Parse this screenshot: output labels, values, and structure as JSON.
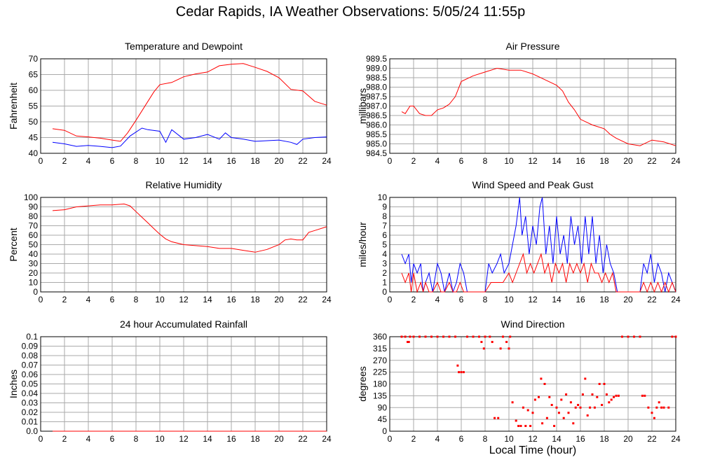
{
  "page": {
    "title": "Cedar Rapids, IA Weather Observations: 5/05/24 11:55p",
    "xlabel": "Local Time (hour)"
  },
  "colors": {
    "red": "#ff0000",
    "blue": "#0000ff",
    "grid": "#aaaaaa"
  },
  "chart_data": [
    {
      "id": "temp",
      "type": "line",
      "title": "Temperature and Dewpoint",
      "ylabel": "Fahrenheit",
      "xlim": [
        0,
        24
      ],
      "ylim": [
        40,
        70
      ],
      "xticks": [
        0,
        2,
        4,
        6,
        8,
        10,
        12,
        14,
        16,
        18,
        20,
        22,
        24
      ],
      "yticks": [
        40,
        45,
        50,
        55,
        60,
        65,
        70
      ],
      "grid": true,
      "series": [
        {
          "color": "#ff0000",
          "x": [
            1,
            2,
            3,
            4,
            5,
            6,
            6.7,
            7.3,
            8,
            8.5,
            9,
            9.5,
            10,
            11,
            12,
            13,
            14,
            15,
            16,
            17,
            18,
            19,
            20,
            21,
            22,
            23,
            24
          ],
          "y": [
            47.8,
            47.3,
            45.5,
            45.2,
            44.8,
            44.2,
            43.8,
            46.5,
            50.5,
            53.5,
            56.5,
            59.5,
            61.8,
            62.5,
            64.3,
            65.2,
            65.8,
            67.8,
            68.3,
            68.5,
            67.3,
            66.0,
            64.0,
            60.3,
            59.8,
            56.5,
            55.3
          ]
        },
        {
          "color": "#0000ff",
          "x": [
            1,
            2,
            3,
            4,
            5,
            6,
            6.7,
            7.5,
            8.5,
            9,
            10,
            10.5,
            11,
            12,
            13,
            14,
            15,
            15.5,
            16,
            17,
            18,
            19,
            20,
            21,
            21.5,
            22,
            23,
            24
          ],
          "y": [
            43.5,
            43.0,
            42.2,
            42.5,
            42.2,
            41.8,
            42.3,
            45.5,
            48.0,
            47.5,
            47.0,
            43.5,
            47.5,
            44.5,
            45.0,
            46.0,
            44.5,
            46.5,
            45.0,
            44.5,
            43.8,
            44.0,
            44.2,
            43.5,
            42.8,
            44.5,
            45.0,
            45.2
          ]
        }
      ]
    },
    {
      "id": "pressure",
      "type": "line",
      "title": "Air Pressure",
      "ylabel": "millibars",
      "xlim": [
        0,
        24
      ],
      "ylim": [
        984.5,
        989.5
      ],
      "xticks": [
        0,
        2,
        4,
        6,
        8,
        10,
        12,
        14,
        16,
        18,
        20,
        22,
        24
      ],
      "yticks": [
        984.5,
        985.0,
        985.5,
        986.0,
        986.5,
        987.0,
        987.5,
        988.0,
        988.5,
        989.0,
        989.5
      ],
      "ytick_labels": [
        "984.5",
        "985.0",
        "985.5",
        "986.0",
        "986.5",
        "987.0",
        "987.5",
        "988.0",
        "988.5",
        "989.0",
        "989.5"
      ],
      "grid": true,
      "series": [
        {
          "color": "#ff0000",
          "x": [
            1,
            1.3,
            1.7,
            2,
            2.5,
            3,
            3.5,
            4,
            4.5,
            5,
            5.5,
            6,
            7,
            8,
            9,
            10,
            11,
            12,
            13,
            14,
            14.5,
            15,
            15.5,
            16,
            17,
            18,
            18.5,
            19,
            20,
            21,
            22,
            23,
            24
          ],
          "y": [
            986.7,
            986.6,
            987.0,
            987.0,
            986.6,
            986.5,
            986.5,
            986.8,
            986.9,
            987.1,
            987.5,
            988.3,
            988.6,
            988.8,
            989.0,
            988.9,
            988.9,
            988.7,
            988.4,
            988.1,
            987.8,
            987.2,
            986.8,
            986.3,
            986.0,
            985.8,
            985.5,
            985.3,
            985.0,
            984.9,
            985.2,
            985.1,
            984.9
          ]
        }
      ]
    },
    {
      "id": "humidity",
      "type": "line",
      "title": "Relative Humidity",
      "ylabel": "Percent",
      "xlim": [
        0,
        24
      ],
      "ylim": [
        0,
        100
      ],
      "xticks": [
        0,
        2,
        4,
        6,
        8,
        10,
        12,
        14,
        16,
        18,
        20,
        22,
        24
      ],
      "yticks": [
        0,
        10,
        20,
        30,
        40,
        50,
        60,
        70,
        80,
        90,
        100
      ],
      "grid": true,
      "series": [
        {
          "color": "#ff0000",
          "x": [
            1,
            2,
            3,
            4,
            5,
            6,
            7,
            7.5,
            8,
            8.5,
            9,
            9.5,
            10,
            10.5,
            11,
            12,
            13,
            14,
            15,
            16,
            17,
            18,
            19,
            20,
            20.5,
            21,
            21.5,
            22,
            22.5,
            23,
            24
          ],
          "y": [
            86,
            87,
            90,
            91,
            92,
            92,
            93,
            91,
            85,
            79,
            73,
            67,
            61,
            56,
            53,
            50,
            49,
            48,
            46,
            46,
            44,
            42,
            45,
            50,
            55,
            56,
            55,
            55,
            63,
            65,
            69
          ]
        }
      ]
    },
    {
      "id": "wind",
      "type": "line",
      "title": "Wind Speed and Peak Gust",
      "ylabel": "miles/hour",
      "xlim": [
        0,
        24
      ],
      "ylim": [
        0,
        10
      ],
      "xticks": [
        0,
        2,
        4,
        6,
        8,
        10,
        12,
        14,
        16,
        18,
        20,
        22,
        24
      ],
      "yticks": [
        0,
        1,
        2,
        3,
        4,
        5,
        6,
        7,
        8,
        9,
        10
      ],
      "grid": true,
      "series": [
        {
          "color": "#0000ff",
          "x": [
            1,
            1.3,
            1.6,
            1.8,
            2.0,
            2.3,
            2.6,
            2.8,
            3.0,
            3.3,
            3.6,
            4.0,
            4.3,
            4.6,
            5.0,
            5.3,
            5.6,
            5.9,
            6.2,
            6.5,
            7.0,
            7.5,
            8.0,
            8.3,
            8.6,
            9.0,
            9.3,
            9.6,
            10.0,
            10.3,
            10.6,
            10.9,
            11.1,
            11.4,
            11.7,
            12.0,
            12.3,
            12.6,
            12.8,
            13.1,
            13.4,
            13.7,
            14.0,
            14.3,
            14.6,
            14.9,
            15.2,
            15.5,
            15.8,
            16.1,
            16.4,
            16.7,
            17.0,
            17.3,
            17.6,
            17.9,
            18.2,
            18.5,
            18.8,
            19.1,
            19.5,
            20.0,
            20.5,
            21.0,
            21.3,
            21.6,
            21.9,
            22.2,
            22.5,
            22.8,
            23.1,
            23.4,
            23.7,
            24.0
          ],
          "y": [
            4,
            3,
            4,
            1,
            3,
            2,
            3,
            0,
            1,
            2,
            0,
            3,
            2,
            0,
            2,
            0,
            1,
            3,
            2,
            0,
            0,
            0,
            0,
            3,
            2,
            3,
            4,
            2,
            3,
            5,
            7,
            10,
            6,
            8,
            4,
            7,
            5,
            9,
            10,
            4,
            7,
            3,
            8,
            4,
            6,
            3,
            8,
            5,
            7,
            3,
            8,
            4,
            8,
            3,
            6,
            2,
            5,
            3,
            2,
            0,
            0,
            0,
            0,
            0,
            3,
            2,
            4,
            1,
            3,
            2,
            0,
            2,
            1,
            0
          ]
        },
        {
          "color": "#ff0000",
          "x": [
            1,
            1.3,
            1.6,
            1.8,
            2.0,
            2.3,
            2.6,
            2.8,
            3.0,
            3.3,
            3.6,
            4.0,
            4.3,
            4.6,
            5.0,
            5.3,
            5.6,
            5.9,
            6.2,
            6.5,
            7.0,
            7.5,
            8.0,
            8.5,
            9.0,
            9.5,
            10.0,
            10.3,
            10.6,
            10.9,
            11.2,
            11.5,
            11.8,
            12.1,
            12.4,
            12.7,
            13.0,
            13.3,
            13.6,
            13.9,
            14.2,
            14.5,
            14.8,
            15.1,
            15.4,
            15.7,
            16.0,
            16.3,
            16.6,
            16.9,
            17.2,
            17.5,
            17.8,
            18.1,
            18.4,
            18.7,
            19.0,
            19.5,
            20.0,
            20.5,
            21.0,
            21.3,
            21.6,
            21.9,
            22.2,
            22.5,
            22.8,
            23.1,
            23.4,
            23.7,
            24.0
          ],
          "y": [
            2,
            1,
            2,
            0,
            2,
            0,
            1,
            0,
            1,
            0,
            0,
            1,
            0,
            0,
            1,
            0,
            0,
            1,
            0,
            0,
            0,
            0,
            0,
            1,
            1,
            1,
            2,
            1,
            2,
            3,
            4,
            2,
            3,
            2,
            3,
            4,
            2,
            3,
            1,
            3,
            2,
            3,
            1,
            3,
            2,
            3,
            2,
            3,
            1,
            3,
            2,
            2,
            1,
            2,
            1,
            2,
            0,
            0,
            0,
            0,
            0,
            1,
            0,
            1,
            0,
            1,
            0,
            1,
            0,
            1,
            0
          ]
        }
      ]
    },
    {
      "id": "rain",
      "type": "line",
      "title": "24 hour Accumulated Rainfall",
      "ylabel": "Inches",
      "xlim": [
        0,
        24
      ],
      "ylim": [
        0,
        0.1
      ],
      "xticks": [
        0,
        2,
        4,
        6,
        8,
        10,
        12,
        14,
        16,
        18,
        20,
        22,
        24
      ],
      "yticks": [
        0,
        0.01,
        0.02,
        0.03,
        0.04,
        0.05,
        0.06,
        0.07,
        0.08,
        0.09,
        0.1
      ],
      "ytick_labels": [
        "0.0",
        "0.01",
        "0.02",
        "0.03",
        "0.04",
        "0.05",
        "0.06",
        "0.07",
        "0.08",
        "0.09",
        "0.1"
      ],
      "grid": true,
      "series": [
        {
          "color": "#ff0000",
          "x": [
            1,
            24
          ],
          "y": [
            0,
            0
          ]
        }
      ]
    },
    {
      "id": "direction",
      "type": "scatter",
      "title": "Wind Direction",
      "ylabel": "degrees",
      "xlim": [
        0,
        24
      ],
      "ylim": [
        0,
        360
      ],
      "xticks": [
        0,
        2,
        4,
        6,
        8,
        10,
        12,
        14,
        16,
        18,
        20,
        22,
        24
      ],
      "yticks": [
        0,
        45,
        90,
        135,
        180,
        225,
        270,
        315,
        360
      ],
      "grid": true,
      "series": [
        {
          "color": "#ff0000",
          "x": [
            1.0,
            1.3,
            1.5,
            1.6,
            1.7,
            2.0,
            2.5,
            3.0,
            3.5,
            4.0,
            4.5,
            5.0,
            5.5,
            5.7,
            5.8,
            6.0,
            6.2,
            6.5,
            7.0,
            7.5,
            7.7,
            7.9,
            8.0,
            8.4,
            8.6,
            8.8,
            9.1,
            9.3,
            9.5,
            9.8,
            10.0,
            10.1,
            10.3,
            10.6,
            10.8,
            11.0,
            11.2,
            11.4,
            11.6,
            11.8,
            12.0,
            12.2,
            12.5,
            12.7,
            12.8,
            13.0,
            13.2,
            13.4,
            13.6,
            13.8,
            14.0,
            14.2,
            14.4,
            14.6,
            14.8,
            15.0,
            15.2,
            15.4,
            15.6,
            15.8,
            16.0,
            16.2,
            16.4,
            16.6,
            16.8,
            17.0,
            17.2,
            17.4,
            17.6,
            17.8,
            18.0,
            18.2,
            18.4,
            18.6,
            18.8,
            19.0,
            19.2,
            19.5,
            20.0,
            20.5,
            21.0,
            21.2,
            21.4,
            21.7,
            22.0,
            22.2,
            22.4,
            22.6,
            22.8,
            23.0,
            23.4,
            23.7,
            24.0
          ],
          "y": [
            360,
            360,
            340,
            340,
            360,
            360,
            360,
            360,
            360,
            360,
            360,
            360,
            360,
            250,
            225,
            225,
            225,
            360,
            360,
            360,
            340,
            315,
            360,
            360,
            340,
            50,
            50,
            315,
            360,
            340,
            315,
            360,
            110,
            40,
            20,
            20,
            90,
            20,
            80,
            20,
            70,
            120,
            130,
            200,
            30,
            180,
            50,
            130,
            100,
            20,
            90,
            70,
            120,
            50,
            140,
            70,
            110,
            30,
            90,
            100,
            90,
            140,
            200,
            60,
            90,
            140,
            90,
            130,
            180,
            100,
            180,
            140,
            110,
            120,
            130,
            135,
            135,
            360,
            360,
            360,
            360,
            135,
            135,
            90,
            70,
            50,
            90,
            110,
            90,
            90,
            90,
            360,
            360
          ]
        }
      ]
    }
  ]
}
